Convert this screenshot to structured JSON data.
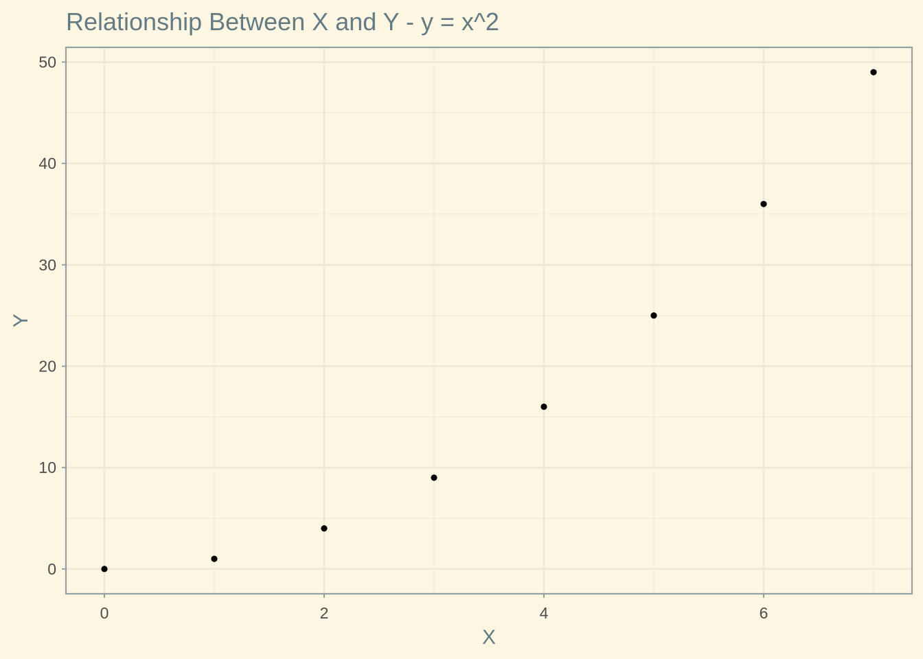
{
  "chart_data": {
    "type": "scatter",
    "title": "Relationship Between X and Y - y = x^2",
    "xlabel": "X",
    "ylabel": "Y",
    "xlim": [
      -0.35,
      7.35
    ],
    "ylim": [
      -2.45,
      51.45
    ],
    "x_ticks": [
      0,
      2,
      4,
      6
    ],
    "x_tick_labels": [
      "0",
      "2",
      "4",
      "6"
    ],
    "y_ticks": [
      0,
      10,
      20,
      30,
      40,
      50
    ],
    "y_tick_labels": [
      "0",
      "10",
      "20",
      "30",
      "40",
      "50"
    ],
    "grid": true,
    "legend": "none",
    "series": [
      {
        "x": [
          0,
          1,
          2,
          3,
          4,
          5,
          6,
          7
        ],
        "y": [
          0,
          1,
          4,
          9,
          16,
          25,
          36,
          49
        ]
      }
    ],
    "colors": {
      "background": "#fdf6e3",
      "grid": "#eee8d5",
      "border": "#93a1a1",
      "point": "#000000",
      "title": "#657b83",
      "tick_text": "#4d4d4d"
    }
  }
}
